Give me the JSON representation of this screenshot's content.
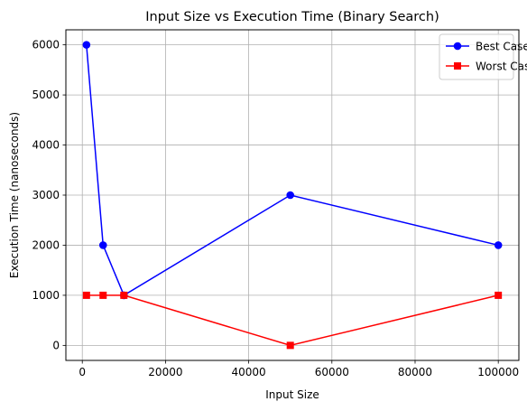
{
  "chart_data": {
    "type": "line",
    "title": "Input Size vs Execution Time (Binary Search)",
    "xlabel": "Input Size",
    "ylabel": "Execution Time (nanoseconds)",
    "x": [
      1000,
      5000,
      10000,
      50000,
      100000
    ],
    "series": [
      {
        "name": "Best Case",
        "values": [
          6000,
          2000,
          1000,
          3000,
          2000
        ],
        "color": "#0000ff",
        "marker": "circle"
      },
      {
        "name": "Worst Case",
        "values": [
          1000,
          1000,
          1000,
          0,
          1000
        ],
        "color": "#ff0000",
        "marker": "square"
      }
    ],
    "xlim": [
      -3950,
      104950
    ],
    "ylim": [
      -300,
      6300
    ],
    "xticks": [
      0,
      20000,
      40000,
      60000,
      80000,
      100000
    ],
    "yticks": [
      0,
      1000,
      2000,
      3000,
      4000,
      5000,
      6000
    ],
    "grid": true,
    "legend_position": "top-right"
  }
}
